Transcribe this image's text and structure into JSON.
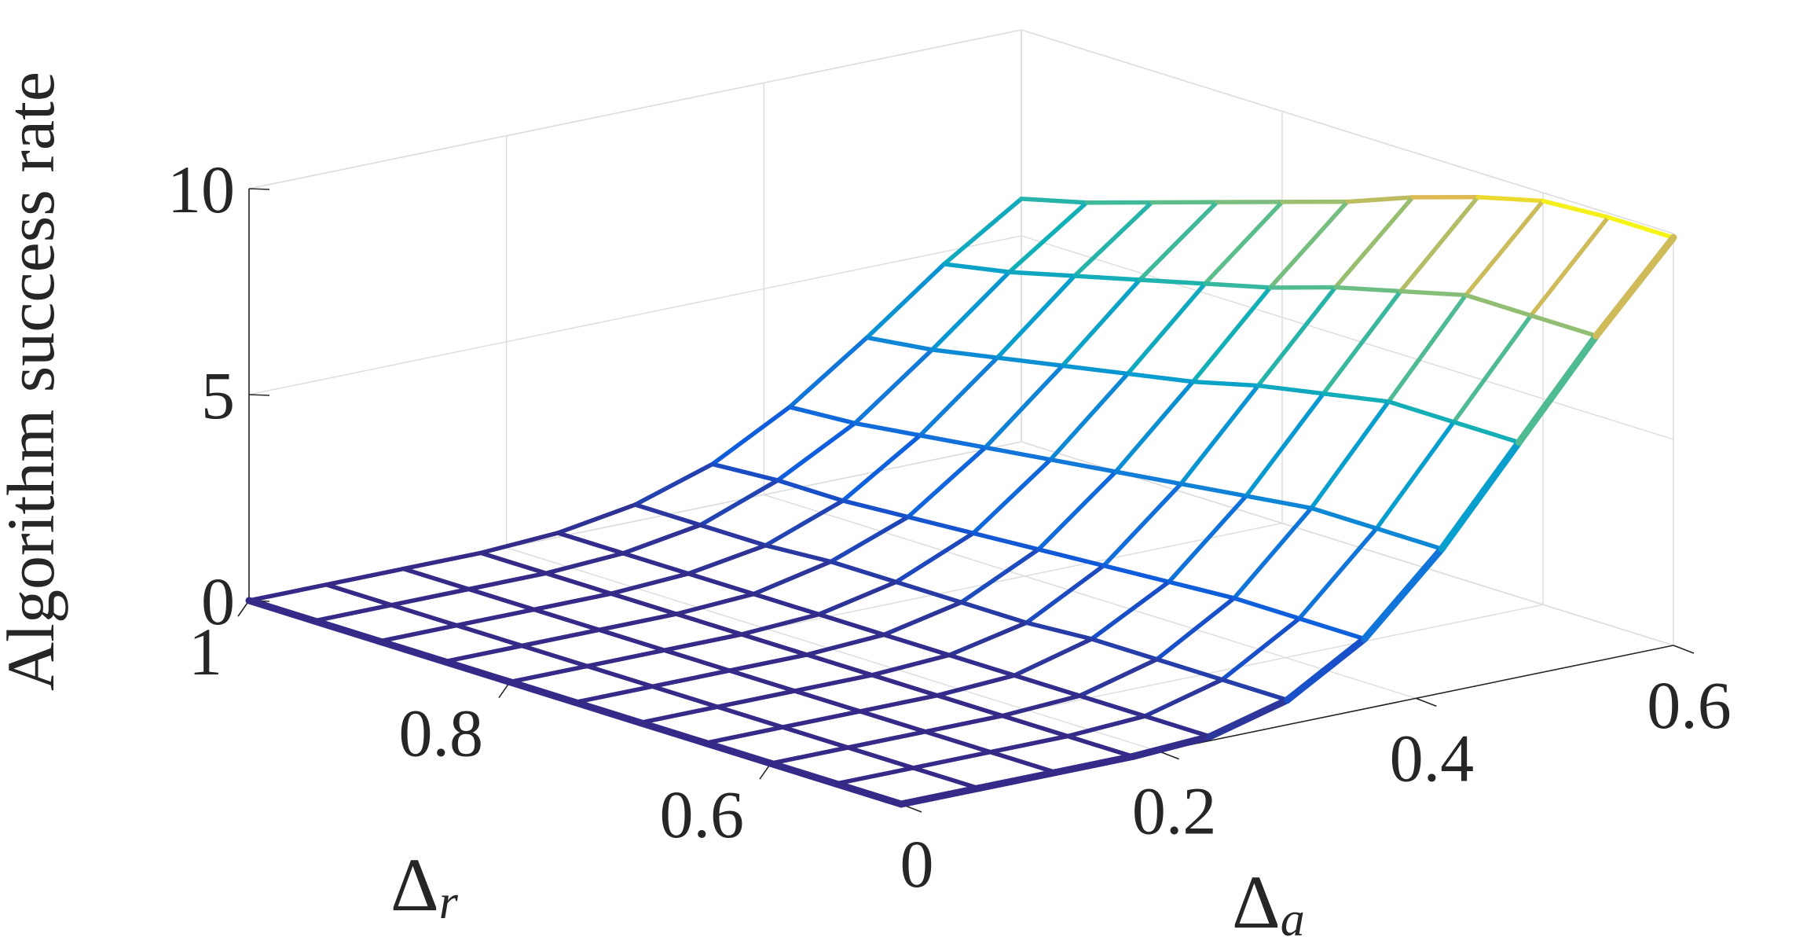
{
  "chart_data": {
    "type": "surface-mesh",
    "title": "",
    "zlabel": "Algorithm success rate",
    "xlabel": {
      "symbol": "Δ",
      "subscript": "r"
    },
    "ylabel": {
      "symbol": "Δ",
      "subscript": "a"
    },
    "x_axis": {
      "name": "Δr",
      "range": [
        0.5,
        1.0
      ],
      "ticks": [
        "1",
        "0.8",
        "0.6"
      ],
      "tick_values": [
        1.0,
        0.8,
        0.6
      ]
    },
    "y_axis": {
      "name": "Δa",
      "range": [
        0,
        0.6
      ],
      "ticks": [
        "0",
        "0.2",
        "0.4",
        "0.6"
      ],
      "tick_values": [
        0,
        0.2,
        0.4,
        0.6
      ]
    },
    "z_axis": {
      "range": [
        0,
        10
      ],
      "ticks": [
        "0",
        "5",
        "10"
      ],
      "tick_values": [
        0,
        5,
        10
      ]
    },
    "grid": true,
    "colormap": "parula",
    "x": [
      1.0,
      0.95,
      0.9,
      0.85,
      0.8,
      0.75,
      0.7,
      0.65,
      0.6,
      0.55,
      0.5
    ],
    "y": [
      0.0,
      0.06,
      0.12,
      0.18,
      0.24,
      0.3,
      0.36,
      0.42,
      0.48,
      0.54,
      0.6
    ],
    "z": [
      [
        0.0,
        0.0,
        0.0,
        0.0,
        0.1,
        0.4,
        1.0,
        2.0,
        3.3,
        4.7,
        5.9
      ],
      [
        0.0,
        0.0,
        0.0,
        0.0,
        0.1,
        0.4,
        1.1,
        2.1,
        3.5,
        5.0,
        6.3
      ],
      [
        0.0,
        0.0,
        0.0,
        0.0,
        0.1,
        0.4,
        1.1,
        2.3,
        3.8,
        5.4,
        6.8
      ],
      [
        0.0,
        0.0,
        0.0,
        0.0,
        0.1,
        0.5,
        1.2,
        2.5,
        4.1,
        5.8,
        7.3
      ],
      [
        0.0,
        0.0,
        0.0,
        0.0,
        0.1,
        0.5,
        1.3,
        2.7,
        4.4,
        6.2,
        7.8
      ],
      [
        0.0,
        0.0,
        0.0,
        0.0,
        0.1,
        0.5,
        1.4,
        2.9,
        4.7,
        6.6,
        8.3
      ],
      [
        0.0,
        0.0,
        0.0,
        0.0,
        0.1,
        0.5,
        1.5,
        3.1,
        5.1,
        7.1,
        8.9
      ],
      [
        0.0,
        0.0,
        0.0,
        0.0,
        0.1,
        0.6,
        1.6,
        3.3,
        5.4,
        7.5,
        9.4
      ],
      [
        0.0,
        0.0,
        0.0,
        0.0,
        0.1,
        0.6,
        1.7,
        3.5,
        5.7,
        7.9,
        9.8
      ],
      [
        0.0,
        0.0,
        0.0,
        0.0,
        0.1,
        0.6,
        1.7,
        3.5,
        5.7,
        7.9,
        9.9
      ],
      [
        0.0,
        0.0,
        0.0,
        0.0,
        0.1,
        0.6,
        1.7,
        3.5,
        5.7,
        7.9,
        9.9
      ]
    ]
  }
}
